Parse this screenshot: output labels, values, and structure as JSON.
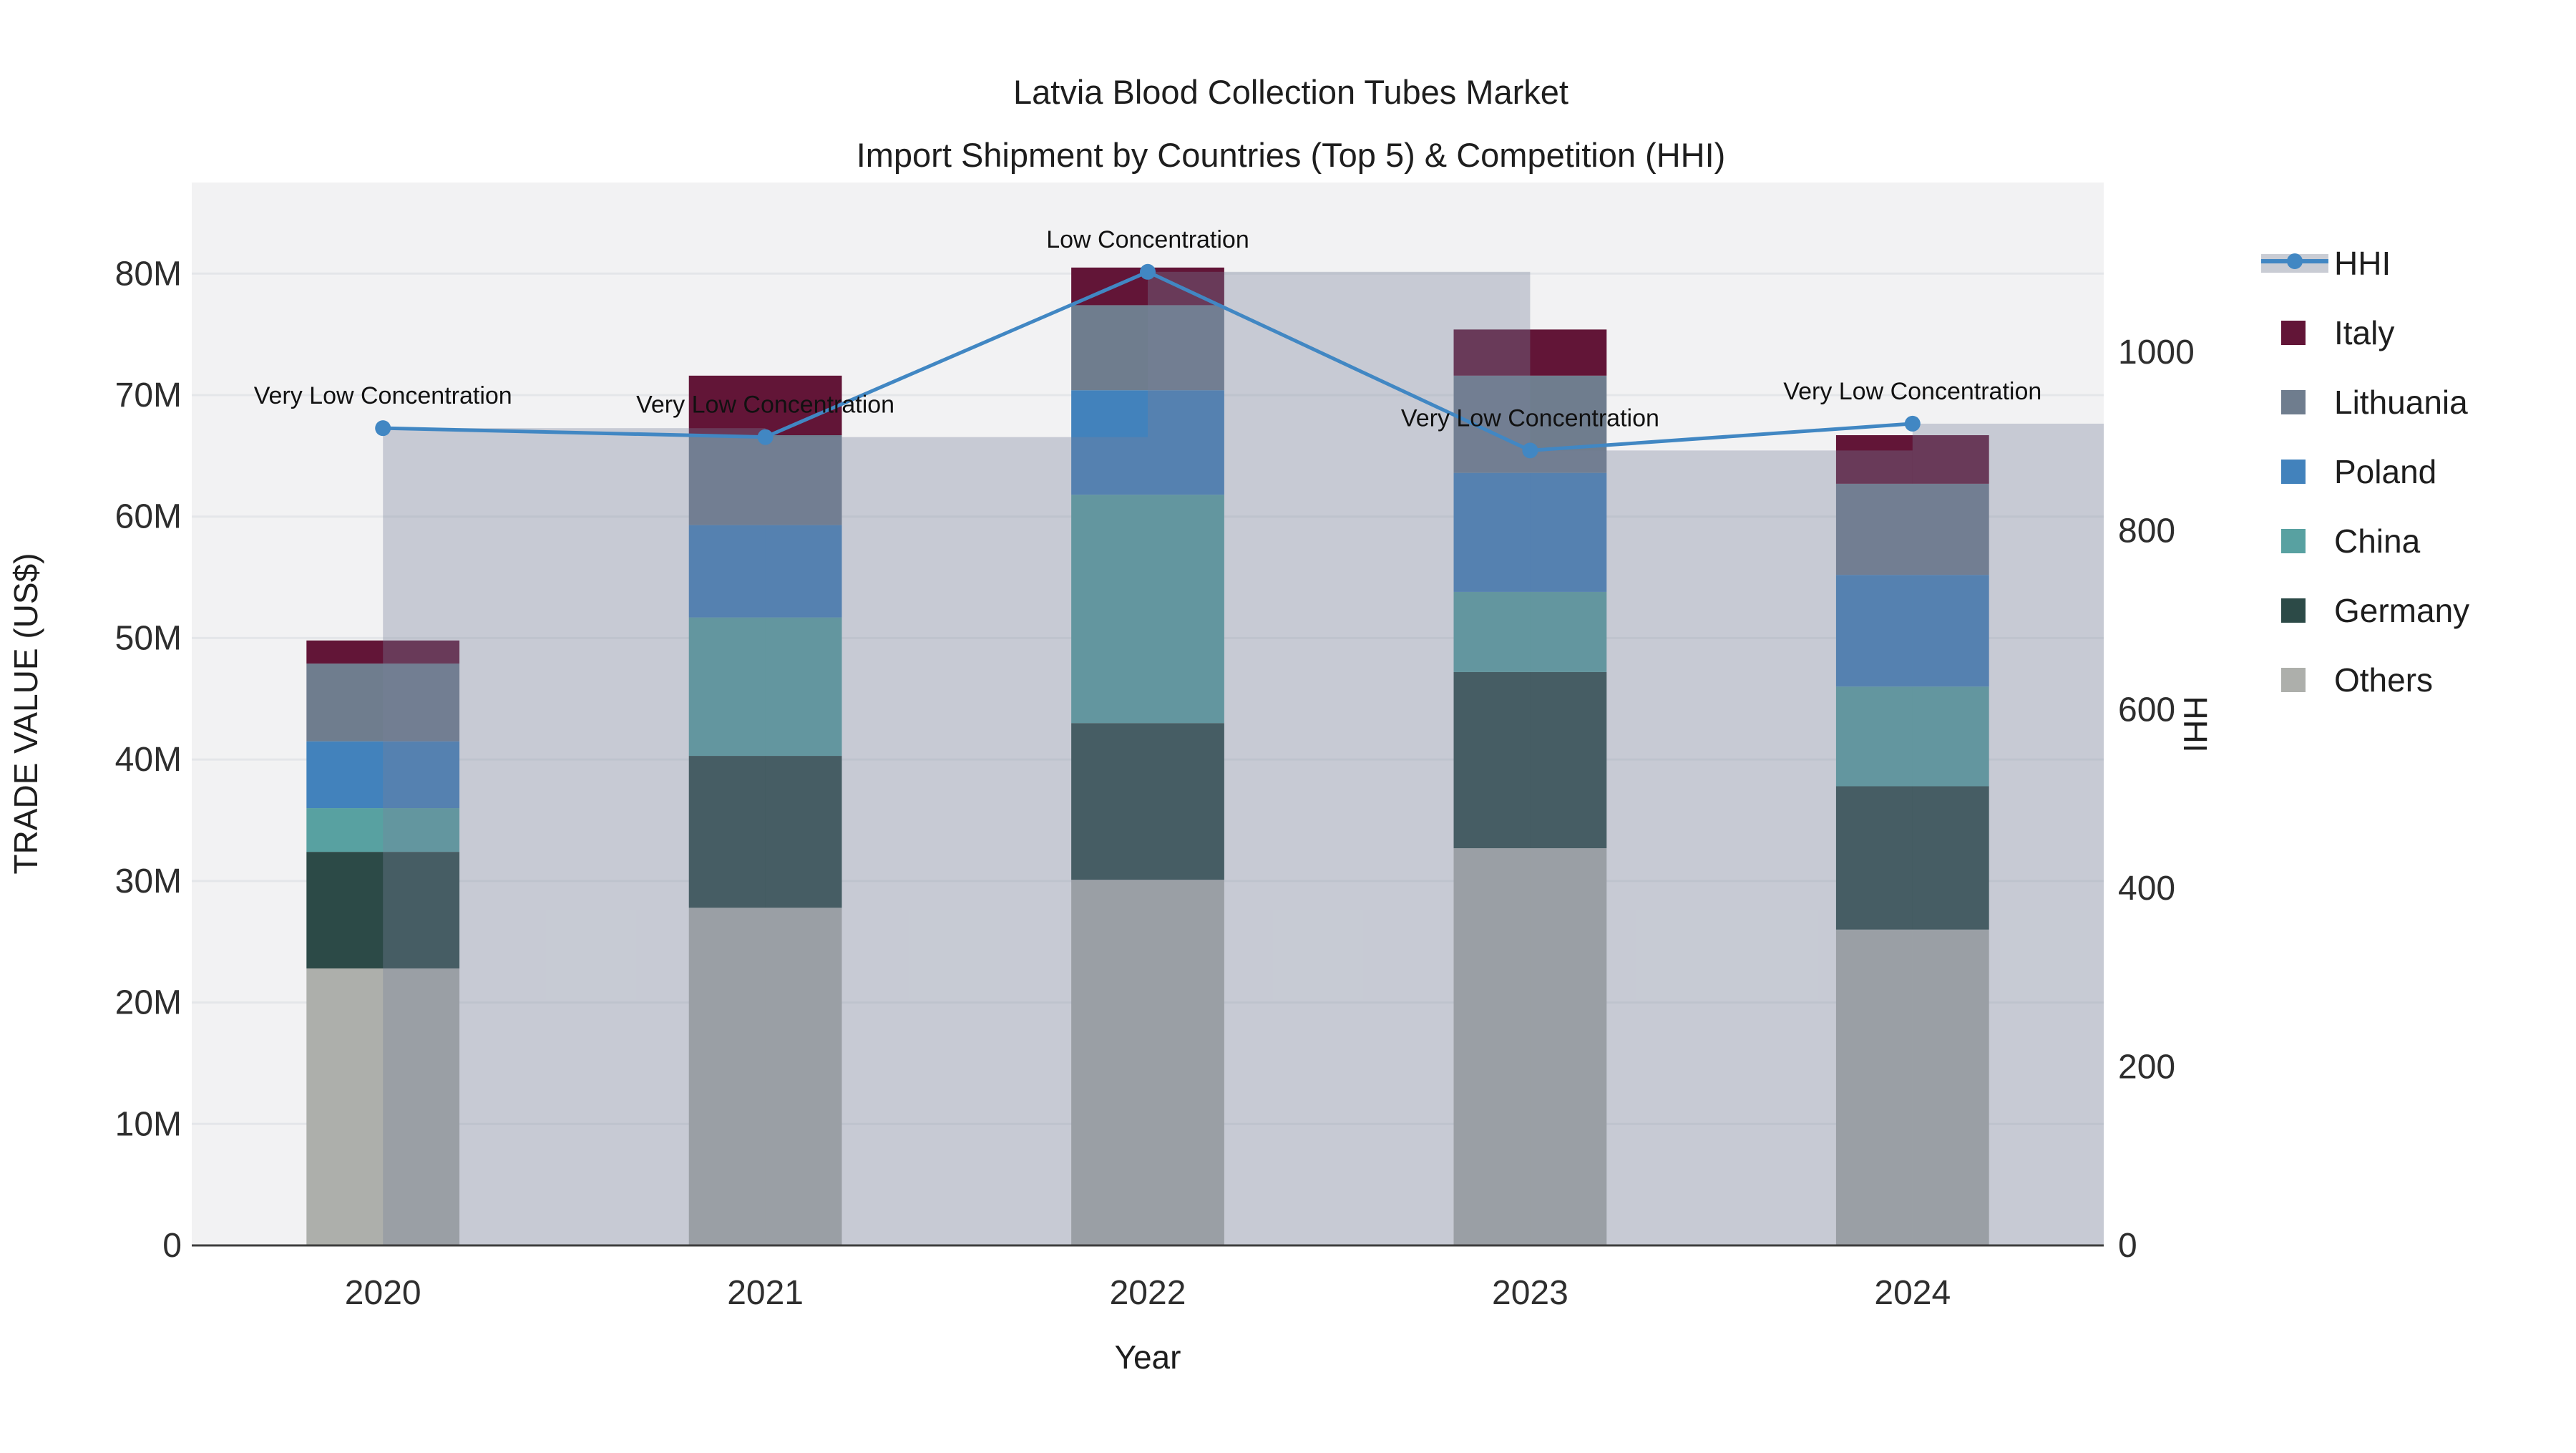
{
  "title_line1": "Latvia Blood Collection Tubes Market",
  "title_line2": "Import Shipment by Countries (Top 5) & Competition (HHI)",
  "chart_data": {
    "type": "bar+line",
    "title": "Latvia Blood Collection Tubes Market — Import Shipment by Countries (Top 5) & Competition (HHI)",
    "x_label": "Year",
    "y_left_label": "TRADE VALUE (US$)",
    "y_right_label": "HHI",
    "categories": [
      "2020",
      "2021",
      "2022",
      "2023",
      "2024"
    ],
    "values_unit": "M US$",
    "stack_order_bottom_to_top": [
      "Others",
      "Germany",
      "China",
      "Poland",
      "Lithuania",
      "Italy"
    ],
    "series": [
      {
        "name": "Italy",
        "color": "#621537",
        "values": [
          1.9,
          4.9,
          3.1,
          3.8,
          4.0
        ]
      },
      {
        "name": "Lithuania",
        "color": "#6f7d8e",
        "values": [
          6.4,
          7.4,
          7.0,
          8.0,
          7.5
        ]
      },
      {
        "name": "Poland",
        "color": "#4282bc",
        "values": [
          5.5,
          7.6,
          8.6,
          9.8,
          9.2
        ]
      },
      {
        "name": "China",
        "color": "#58a1a1",
        "values": [
          3.6,
          11.4,
          18.8,
          6.6,
          8.2
        ]
      },
      {
        "name": "Germany",
        "color": "#2c4a47",
        "values": [
          9.6,
          12.5,
          12.9,
          14.5,
          11.8
        ]
      },
      {
        "name": "Others",
        "color": "#adafab",
        "values": [
          22.8,
          27.8,
          30.1,
          32.7,
          26.0
        ]
      }
    ],
    "bar_totals": [
      49.8,
      71.6,
      80.5,
      75.4,
      66.7
    ],
    "hhi": {
      "name": "HHI",
      "line_color": "#4187c3",
      "band_color": "rgba(120,130,155,0.35)",
      "legend_band_color": "#c9ccd4",
      "values": [
        915,
        905,
        1090,
        890,
        920
      ]
    },
    "annotations": [
      "Very Low Concentration",
      "Very Low Concentration",
      "Low Concentration",
      "Very Low Concentration",
      "Very Low Concentration"
    ],
    "left_axis": {
      "ticks": [
        "0",
        "10M",
        "20M",
        "30M",
        "40M",
        "50M",
        "60M",
        "70M",
        "80M"
      ],
      "tick_values": [
        0,
        10,
        20,
        30,
        40,
        50,
        60,
        70,
        80
      ],
      "max": 87.5
    },
    "right_axis": {
      "ticks": [
        "0",
        "200",
        "400",
        "600",
        "800",
        "1000"
      ],
      "tick_values": [
        0,
        200,
        400,
        600,
        800,
        1000
      ],
      "max": 1190
    },
    "legend_order": [
      "HHI",
      "Italy",
      "Lithuania",
      "Poland",
      "China",
      "Germany",
      "Others"
    ],
    "legend_position": "right",
    "grid": true,
    "plot_bg": "#f2f2f3",
    "grid_color": "#e4e6e9",
    "axisline_color": "#3d3d3d"
  }
}
